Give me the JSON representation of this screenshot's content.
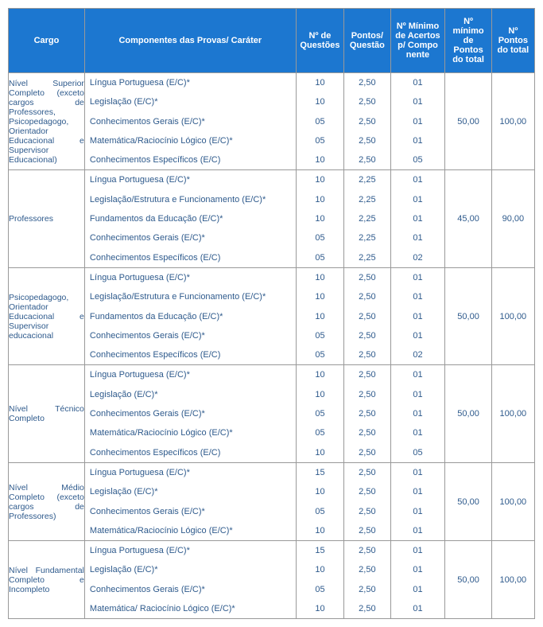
{
  "headers": {
    "cargo": "Cargo",
    "componentes": "Componentes das Provas/ Caráter",
    "n_questoes": "Nº de Questões",
    "pontos_questao": "Pontos/ Questão",
    "n_min_acertos": "Nº Mínimo de Acertos p/ Compo nente",
    "n_min_pontos": "Nº mínimo de Pontos do total",
    "n_pontos_total": "Nº Pontos do total"
  },
  "groups": [
    {
      "cargo": "Nível Superior Completo\n(exceto cargos de Professores, Psicopedagogo, Orientador Educacional e Supervisor Educacional)",
      "min_pontos": "50,00",
      "pontos_total": "100,00",
      "rows": [
        {
          "comp": "Língua Portuguesa (E/C)*",
          "nq": "10",
          "pq": "2,50",
          "na": "01"
        },
        {
          "comp": "Legislação (E/C)*",
          "nq": "10",
          "pq": "2,50",
          "na": "01"
        },
        {
          "comp": "Conhecimentos Gerais (E/C)*",
          "nq": "05",
          "pq": "2,50",
          "na": "01"
        },
        {
          "comp": "Matemática/Raciocínio Lógico (E/C)*",
          "nq": "05",
          "pq": "2,50",
          "na": "01"
        },
        {
          "comp": "Conhecimentos Específicos (E/C)",
          "nq": "10",
          "pq": "2,50",
          "na": "05"
        }
      ]
    },
    {
      "cargo": "Professores",
      "min_pontos": "45,00",
      "pontos_total": "90,00",
      "rows": [
        {
          "comp": "Língua Portuguesa (E/C)*",
          "nq": "10",
          "pq": "2,25",
          "na": "01"
        },
        {
          "comp": "Legislação/Estrutura e Funcionamento (E/C)*",
          "nq": "10",
          "pq": "2,25",
          "na": "01"
        },
        {
          "comp": "Fundamentos da Educação (E/C)*",
          "nq": "10",
          "pq": "2,25",
          "na": "01"
        },
        {
          "comp": "Conhecimentos Gerais (E/C)*",
          "nq": "05",
          "pq": "2,25",
          "na": "01"
        },
        {
          "comp": "Conhecimentos Específicos (E/C)",
          "nq": "05",
          "pq": "2,25",
          "na": "02"
        }
      ]
    },
    {
      "cargo": "Psicopedagogo, Orientador Educacional e Supervisor educacional",
      "min_pontos": "50,00",
      "pontos_total": "100,00",
      "rows": [
        {
          "comp": "Língua Portuguesa (E/C)*",
          "nq": "10",
          "pq": "2,50",
          "na": "01"
        },
        {
          "comp": "Legislação/Estrutura e Funcionamento (E/C)*",
          "nq": "10",
          "pq": "2,50",
          "na": "01"
        },
        {
          "comp": "Fundamentos da Educação (E/C)*",
          "nq": "10",
          "pq": "2,50",
          "na": "01"
        },
        {
          "comp": "Conhecimentos Gerais (E/C)*",
          "nq": "05",
          "pq": "2,50",
          "na": "01"
        },
        {
          "comp": "Conhecimentos Específicos (E/C)",
          "nq": "05",
          "pq": "2,50",
          "na": "02"
        }
      ]
    },
    {
      "cargo": "Nível Técnico Completo",
      "min_pontos": "50,00",
      "pontos_total": "100,00",
      "rows": [
        {
          "comp": "Língua Portuguesa (E/C)*",
          "nq": "10",
          "pq": "2,50",
          "na": "01"
        },
        {
          "comp": "Legislação (E/C)*",
          "nq": "10",
          "pq": "2,50",
          "na": "01"
        },
        {
          "comp": "Conhecimentos Gerais (E/C)*",
          "nq": "05",
          "pq": "2,50",
          "na": "01"
        },
        {
          "comp": "Matemática/Raciocínio Lógico (E/C)*",
          "nq": "05",
          "pq": "2,50",
          "na": "01"
        },
        {
          "comp": "Conhecimentos Específicos (E/C)",
          "nq": "10",
          "pq": "2,50",
          "na": "05"
        }
      ]
    },
    {
      "cargo": "Nível Médio Completo\n(exceto cargos de Professores)",
      "min_pontos": "50,00",
      "pontos_total": "100,00",
      "rows": [
        {
          "comp": "Língua Portuguesa (E/C)*",
          "nq": "15",
          "pq": "2,50",
          "na": "01"
        },
        {
          "comp": "Legislação (E/C)*",
          "nq": "10",
          "pq": "2,50",
          "na": "01"
        },
        {
          "comp": "Conhecimentos Gerais (E/C)*",
          "nq": "05",
          "pq": "2,50",
          "na": "01"
        },
        {
          "comp": "Matemática/Raciocínio Lógico (E/C)*",
          "nq": "10",
          "pq": "2,50",
          "na": "01"
        }
      ]
    },
    {
      "cargo": "Nível Fundamental Completo e Incompleto",
      "min_pontos": "50,00",
      "pontos_total": "100,00",
      "rows": [
        {
          "comp": "Língua Portuguesa (E/C)*",
          "nq": "15",
          "pq": "2,50",
          "na": "01"
        },
        {
          "comp": "Legislação (E/C)*",
          "nq": "10",
          "pq": "2,50",
          "na": "01"
        },
        {
          "comp": "Conhecimentos Gerais (E/C)*",
          "nq": "05",
          "pq": "2,50",
          "na": "01"
        },
        {
          "comp": "Matemática/ Raciocínio Lógico (E/C)*",
          "nq": "10",
          "pq": "2,50",
          "na": "01"
        }
      ]
    }
  ]
}
